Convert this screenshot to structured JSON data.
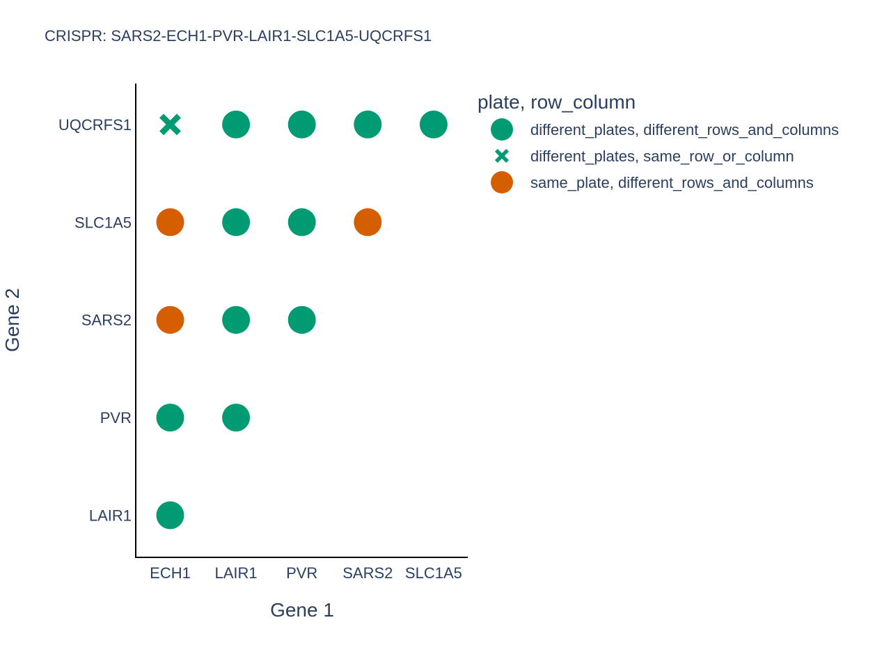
{
  "chart_data": {
    "type": "scatter",
    "title": "CRISPR: SARS2-ECH1-PVR-LAIR1-SLC1A5-UQCRFS1",
    "xlabel": "Gene 1",
    "ylabel": "Gene 2",
    "x_categories": [
      "ECH1",
      "LAIR1",
      "PVR",
      "SARS2",
      "SLC1A5"
    ],
    "y_categories": [
      "LAIR1",
      "PVR",
      "SARS2",
      "SLC1A5",
      "UQCRFS1"
    ],
    "grid": false,
    "legend": {
      "title": "plate, row_column",
      "placement": "top-right"
    },
    "series": [
      {
        "name": "different_plates, different_rows_and_columns",
        "marker": "circle",
        "color": "#009b72",
        "points": [
          {
            "x": "LAIR1",
            "y": "UQCRFS1"
          },
          {
            "x": "PVR",
            "y": "UQCRFS1"
          },
          {
            "x": "SARS2",
            "y": "UQCRFS1"
          },
          {
            "x": "SLC1A5",
            "y": "UQCRFS1"
          },
          {
            "x": "LAIR1",
            "y": "SLC1A5"
          },
          {
            "x": "PVR",
            "y": "SLC1A5"
          },
          {
            "x": "LAIR1",
            "y": "SARS2"
          },
          {
            "x": "PVR",
            "y": "SARS2"
          },
          {
            "x": "ECH1",
            "y": "PVR"
          },
          {
            "x": "LAIR1",
            "y": "PVR"
          },
          {
            "x": "ECH1",
            "y": "LAIR1"
          }
        ]
      },
      {
        "name": "different_plates, same_row_or_column",
        "marker": "x",
        "color": "#009b72",
        "points": [
          {
            "x": "ECH1",
            "y": "UQCRFS1"
          }
        ]
      },
      {
        "name": "same_plate, different_rows_and_columns",
        "marker": "circle",
        "color": "#d55e00",
        "points": [
          {
            "x": "ECH1",
            "y": "SLC1A5"
          },
          {
            "x": "SARS2",
            "y": "SLC1A5"
          },
          {
            "x": "ECH1",
            "y": "SARS2"
          }
        ]
      }
    ]
  }
}
